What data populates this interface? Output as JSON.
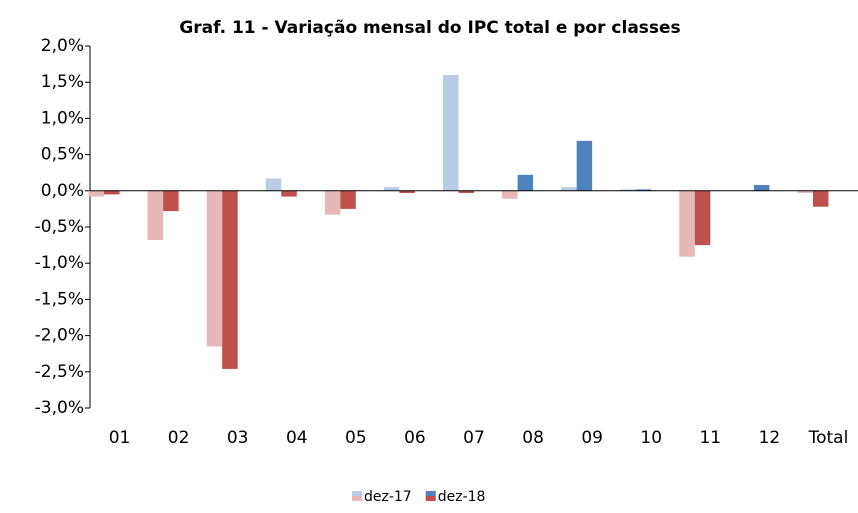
{
  "chart_data": {
    "type": "bar",
    "title": "Graf. 11 - Variação mensal do IPC total e por classes",
    "categories": [
      "01",
      "02",
      "03",
      "04",
      "05",
      "06",
      "07",
      "08",
      "09",
      "10",
      "11",
      "12",
      "Total"
    ],
    "series": [
      {
        "name": "dez-17",
        "color": "#b8cce4",
        "negative_color": "#e6b9b8",
        "values": [
          -0.08,
          -0.68,
          -2.15,
          0.17,
          -0.33,
          0.05,
          1.6,
          -0.11,
          0.05,
          0.02,
          -0.91,
          0,
          -0.03
        ]
      },
      {
        "name": "dez-18",
        "color": "#4f81bd",
        "negative_color": "#c0504d",
        "values": [
          -0.05,
          -0.28,
          -2.46,
          -0.08,
          -0.25,
          -0.03,
          -0.03,
          0.22,
          0.69,
          0.02,
          -0.75,
          0.08,
          -0.22
        ]
      }
    ],
    "ylim": [
      -3.0,
      2.0
    ],
    "yticks": [
      {
        "value": -3.0,
        "label": "-3,0%"
      },
      {
        "value": -2.5,
        "label": "-2,5%"
      },
      {
        "value": -2.0,
        "label": "-2,0%"
      },
      {
        "value": -1.5,
        "label": "-1,5%"
      },
      {
        "value": -1.0,
        "label": "-1,0%"
      },
      {
        "value": -0.5,
        "label": "-0,5%"
      },
      {
        "value": 0.0,
        "label": "0,0%"
      },
      {
        "value": 0.5,
        "label": "0,5%"
      },
      {
        "value": 1.0,
        "label": "1,0%"
      },
      {
        "value": 1.5,
        "label": "1,5%"
      },
      {
        "value": 2.0,
        "label": "2,0%"
      }
    ],
    "grid": false
  }
}
